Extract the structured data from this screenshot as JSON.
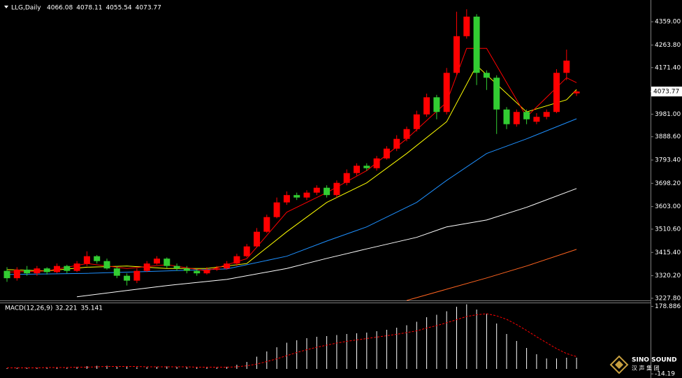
{
  "chart_data": [
    {
      "type": "candlestick",
      "title": "LLG,Daily",
      "ohlc_header": [
        4066.08,
        4078.11,
        4055.54,
        4073.77
      ],
      "up_color": "#ff0000",
      "down_color": "#32cd32",
      "open": [
        3340,
        3310,
        3345,
        3330,
        3350,
        3335,
        3360,
        3340,
        3370,
        3400,
        3380,
        3350,
        3320,
        3300,
        3340,
        3370,
        3390,
        3360,
        3350,
        3340,
        3330,
        3345,
        3350,
        3370,
        3400,
        3440,
        3500,
        3560,
        3620,
        3650,
        3640,
        3660,
        3680,
        3650,
        3700,
        3740,
        3770,
        3760,
        3800,
        3840,
        3880,
        3920,
        3980,
        4050,
        3990,
        4150,
        4300,
        4380,
        4150,
        4130,
        4000,
        3940,
        3990,
        3950,
        3970,
        3990,
        4150,
        4066.08
      ],
      "high": [
        3355,
        3355,
        3360,
        3360,
        3355,
        3370,
        3365,
        3380,
        3420,
        3405,
        3390,
        3360,
        3330,
        3350,
        3380,
        3400,
        3395,
        3370,
        3360,
        3350,
        3355,
        3360,
        3380,
        3410,
        3450,
        3515,
        3570,
        3640,
        3665,
        3660,
        3670,
        3690,
        3690,
        3710,
        3755,
        3780,
        3780,
        3810,
        3850,
        3895,
        3930,
        3995,
        4065,
        4060,
        4170,
        4400,
        4410,
        4390,
        4160,
        4140,
        4010,
        4000,
        4000,
        3985,
        4000,
        4165,
        4245,
        4078.11
      ],
      "low": [
        3295,
        3300,
        3320,
        3320,
        3325,
        3330,
        3330,
        3335,
        3360,
        3370,
        3345,
        3310,
        3280,
        3290,
        3335,
        3365,
        3350,
        3340,
        3330,
        3320,
        3325,
        3340,
        3345,
        3360,
        3395,
        3435,
        3495,
        3555,
        3610,
        3630,
        3630,
        3650,
        3640,
        3640,
        3690,
        3730,
        3750,
        3750,
        3795,
        3830,
        3870,
        3910,
        3970,
        3960,
        3980,
        4140,
        4290,
        4100,
        4080,
        3900,
        3920,
        3930,
        3940,
        3940,
        3960,
        3985,
        4120,
        4055.54
      ],
      "close": [
        3310,
        3345,
        3330,
        3350,
        3335,
        3360,
        3340,
        3370,
        3400,
        3380,
        3350,
        3320,
        3300,
        3340,
        3370,
        3390,
        3360,
        3350,
        3340,
        3330,
        3345,
        3350,
        3370,
        3400,
        3440,
        3500,
        3560,
        3620,
        3650,
        3640,
        3660,
        3680,
        3650,
        3700,
        3740,
        3770,
        3760,
        3800,
        3840,
        3880,
        3920,
        3980,
        4050,
        3990,
        4150,
        4300,
        4380,
        4150,
        4130,
        4000,
        3940,
        3990,
        3960,
        3970,
        3990,
        4150,
        4200,
        4073.77
      ],
      "series": [
        {
          "color": "#ff6420",
          "x": [
            40,
            44,
            48,
            52,
            57
          ],
          "values": [
            3219,
            3265,
            3311,
            3360,
            3428
          ]
        },
        {
          "color": "#ffffff",
          "x": [
            7,
            12,
            16,
            22,
            28,
            32,
            36,
            41,
            44,
            48,
            52,
            57
          ],
          "values": [
            3234,
            3260,
            3280,
            3305,
            3350,
            3391,
            3430,
            3477,
            3520,
            3548,
            3600,
            3677
          ]
        },
        {
          "color": "#1e90ff",
          "x": [
            0,
            8,
            16,
            22,
            28,
            32,
            36,
            41,
            44,
            48,
            52,
            57
          ],
          "values": [
            3325,
            3330,
            3340,
            3348,
            3400,
            3462,
            3520,
            3620,
            3710,
            3820,
            3880,
            3962
          ]
        },
        {
          "color": "#ffff00",
          "x": [
            0,
            4,
            8,
            12,
            16,
            20,
            24,
            28,
            32,
            36,
            40,
            44,
            47,
            52,
            56,
            57
          ],
          "values": [
            3345,
            3340,
            3355,
            3360,
            3350,
            3350,
            3370,
            3500,
            3620,
            3700,
            3820,
            3950,
            4180,
            3990,
            4040,
            4082
          ]
        },
        {
          "color": "#ff0000",
          "x": [
            0,
            4,
            8,
            12,
            16,
            20,
            24,
            28,
            32,
            36,
            40,
            44,
            46,
            48,
            52,
            56,
            57
          ],
          "values": [
            3335,
            3340,
            3370,
            3350,
            3365,
            3340,
            3390,
            3580,
            3660,
            3750,
            3880,
            4030,
            4250,
            4250,
            3970,
            4130,
            4110
          ]
        }
      ],
      "ylim": [
        3219,
        4448
      ],
      "yticks": [
        {
          "value": 4359,
          "label": "4359.00"
        },
        {
          "value": 4263.8,
          "label": "4263.80"
        },
        {
          "value": 4171.4,
          "label": "4171.40"
        },
        {
          "value": 3981,
          "label": "3981.00"
        },
        {
          "value": 3888.6,
          "label": "3888.60"
        },
        {
          "value": 3793.4,
          "label": "3793.40"
        },
        {
          "value": 3698.2,
          "label": "3698.20"
        },
        {
          "value": 3603,
          "label": "3603.00"
        },
        {
          "value": 3510.6,
          "label": "3510.60"
        },
        {
          "value": 3415.4,
          "label": "3415.40"
        },
        {
          "value": 3320.2,
          "label": "3320.20"
        },
        {
          "value": 3227.8,
          "label": "3227.80"
        }
      ],
      "current_price": 4073.77
    },
    {
      "type": "macd",
      "title": "MACD(12,26,9)",
      "header_values": [
        32.221,
        35.141
      ],
      "histogram": {
        "color": "#ffffff",
        "values": [
          2,
          3,
          3,
          4,
          4,
          5,
          5,
          6,
          8,
          9,
          9,
          8,
          6,
          5,
          5,
          6,
          7,
          6,
          5,
          4,
          4,
          4,
          6,
          12,
          20,
          35,
          50,
          62,
          75,
          82,
          88,
          92,
          94,
          97,
          100,
          102,
          104,
          108,
          112,
          118,
          125,
          135,
          148,
          155,
          165,
          178,
          185,
          170,
          158,
          130,
          100,
          80,
          60,
          42,
          30,
          30,
          32,
          32.221
        ]
      },
      "signal": {
        "color": "#ff0000",
        "values": [
          3,
          3,
          3,
          3,
          4,
          4,
          4,
          5,
          5,
          6,
          7,
          7,
          7,
          7,
          6,
          6,
          6,
          6,
          6,
          5,
          5,
          5,
          5,
          6,
          9,
          14,
          21,
          29,
          38,
          47,
          55,
          62,
          68,
          74,
          79,
          83,
          87,
          91,
          95,
          99,
          104,
          109,
          117,
          124,
          132,
          141,
          150,
          155,
          158,
          152,
          142,
          127,
          110,
          92,
          75,
          58,
          44,
          35.141
        ]
      },
      "ylim": [
        -20,
        190
      ],
      "yticks": [
        {
          "value": 178.886,
          "label": "178.886"
        },
        {
          "value": -14.19,
          "label": "-14.19"
        }
      ]
    }
  ],
  "logo": {
    "text": "SINO SOUND",
    "subtext": "汉 声 集 团"
  }
}
